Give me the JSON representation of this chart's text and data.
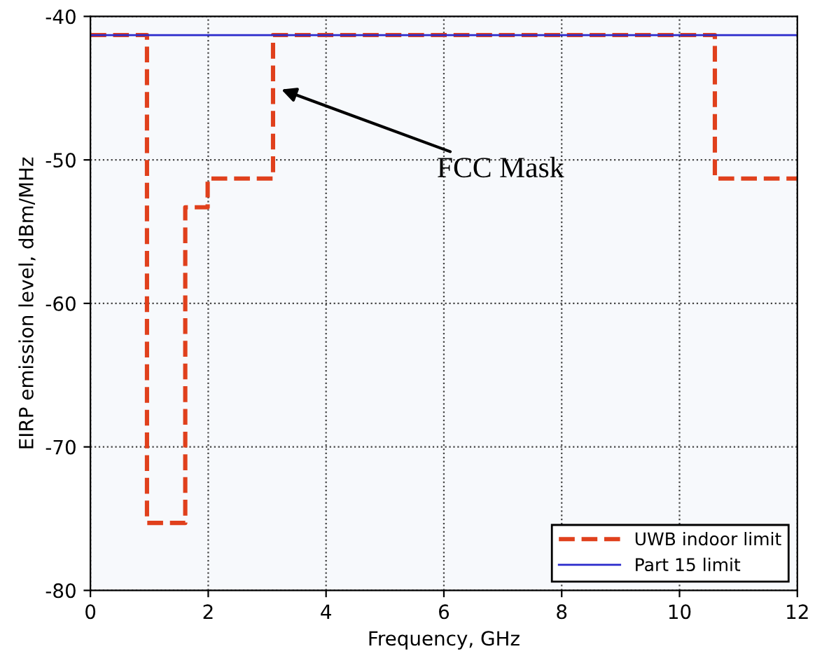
{
  "chart_data": {
    "type": "step",
    "xlabel": "Frequency, GHz",
    "ylabel": "EIRP emission level, dBm/MHz",
    "series": [
      {
        "name": "UWB indoor limit",
        "color": "#e0401c",
        "line_style": "dashed",
        "x": [
          0,
          0.96,
          1.61,
          1.99,
          3.1,
          10.6,
          12
        ],
        "values": [
          -41.3,
          -75.3,
          -53.3,
          -51.3,
          -41.3,
          -51.3,
          -51.3
        ]
      },
      {
        "name": "Part 15 limit",
        "type": "line",
        "color": "#2a2acc",
        "line_style": "solid",
        "x": [
          0,
          12
        ],
        "values": [
          -41.3,
          -41.3
        ]
      }
    ],
    "xlim": [
      0,
      12
    ],
    "xticks": [
      0,
      2,
      4,
      6,
      8,
      10,
      12
    ],
    "ylim": [
      -80,
      -40
    ],
    "yticks": [
      -80,
      -70,
      -60,
      -50,
      -40
    ],
    "grid": true,
    "legend": "bottom right",
    "annotations": [
      "FCC Mask"
    ]
  }
}
